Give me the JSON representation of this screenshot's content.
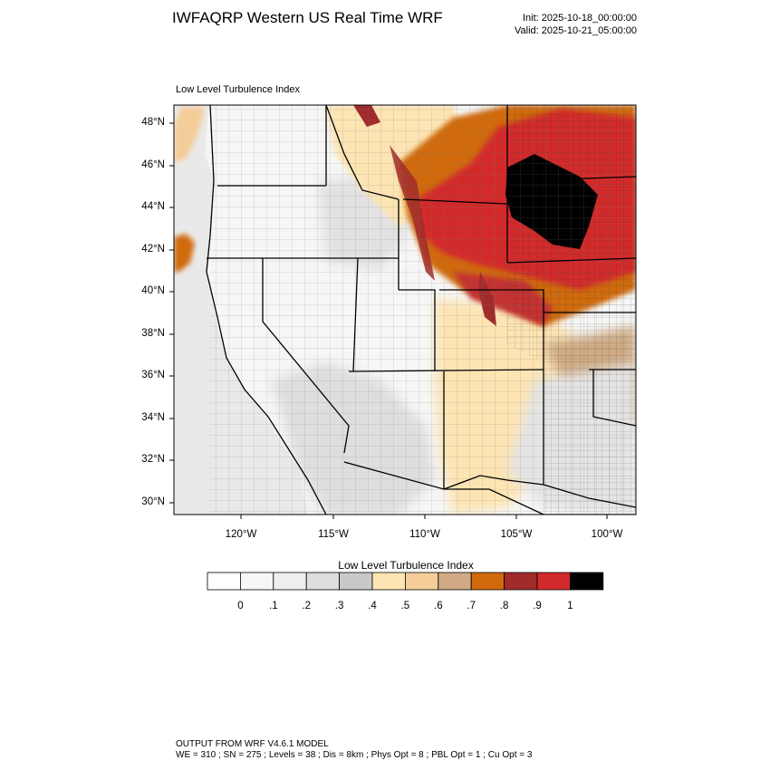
{
  "header": {
    "title": "IWFAQRP Western US Real Time WRF",
    "init": "Init: 2025-10-18_00:00:00",
    "valid": "Valid: 2025-10-21_05:00:00"
  },
  "map": {
    "subtitle": "Low Level Turbulence Index",
    "field": "Low Level Turbulence Index",
    "extent": {
      "lon_min": -123.6,
      "lon_max": -98.3,
      "lat_min": 29.4,
      "lat_max": 48.9
    },
    "lat_ticks": [
      "48°N",
      "46°N",
      "44°N",
      "42°N",
      "40°N",
      "38°N",
      "36°N",
      "34°N",
      "32°N",
      "30°N"
    ],
    "lon_ticks": [
      "120°W",
      "115°W",
      "110°W",
      "105°W",
      "100°W"
    ],
    "boundaries": [
      "state lines",
      "county lines",
      "coastline"
    ]
  },
  "colorbar": {
    "title": "Low Level Turbulence Index",
    "labels": [
      "0",
      ".1",
      ".2",
      ".3",
      ".4",
      ".5",
      ".6",
      ".7",
      ".8",
      ".9",
      "1"
    ],
    "colors": [
      "#ffffff",
      "#f7f7f7",
      "#eeeeee",
      "#dddddd",
      "#c9c9c9",
      "#fde4b3",
      "#f4cd98",
      "#cfaa84",
      "#d06a0c",
      "#a12b2b",
      "#d22a2c",
      "#000000"
    ]
  },
  "footer": {
    "line1": "OUTPUT FROM WRF V4.6.1 MODEL",
    "line2": "WE = 310 ; SN = 275 ; Levels = 38 ; Dis = 8km ; Phys Opt = 8 ; PBL Opt = 1 ; Cu Opt = 3"
  }
}
